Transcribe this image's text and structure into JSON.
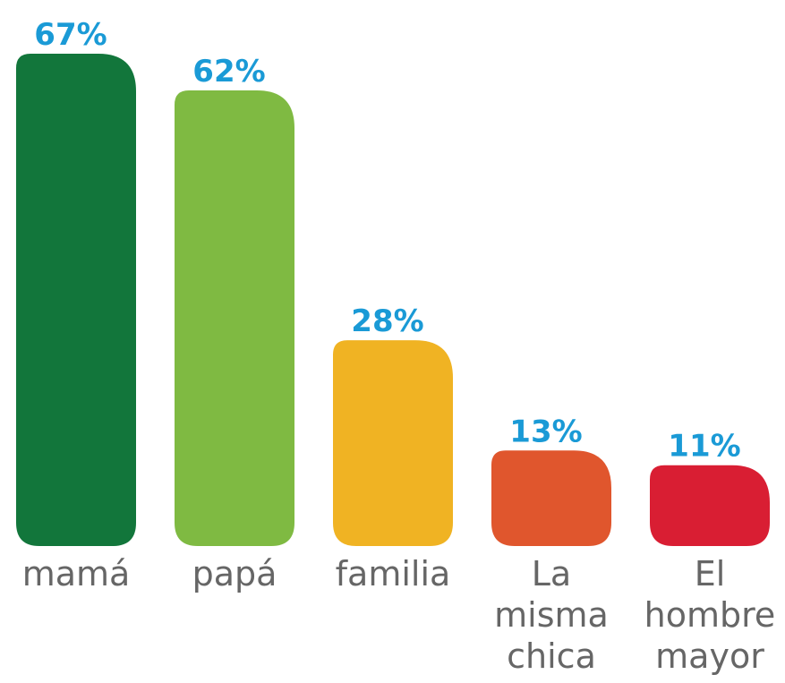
{
  "chart_data": {
    "type": "bar",
    "categories": [
      "mamá",
      "papá",
      "familia",
      "La misma chica",
      "El hombre mayor"
    ],
    "values": [
      67,
      62,
      28,
      13,
      11
    ],
    "value_labels": [
      "67%",
      "62%",
      "28%",
      "13%",
      "11%"
    ],
    "colors": [
      "#12763b",
      "#7fba42",
      "#f0b323",
      "#e0562d",
      "#d91e33"
    ]
  }
}
